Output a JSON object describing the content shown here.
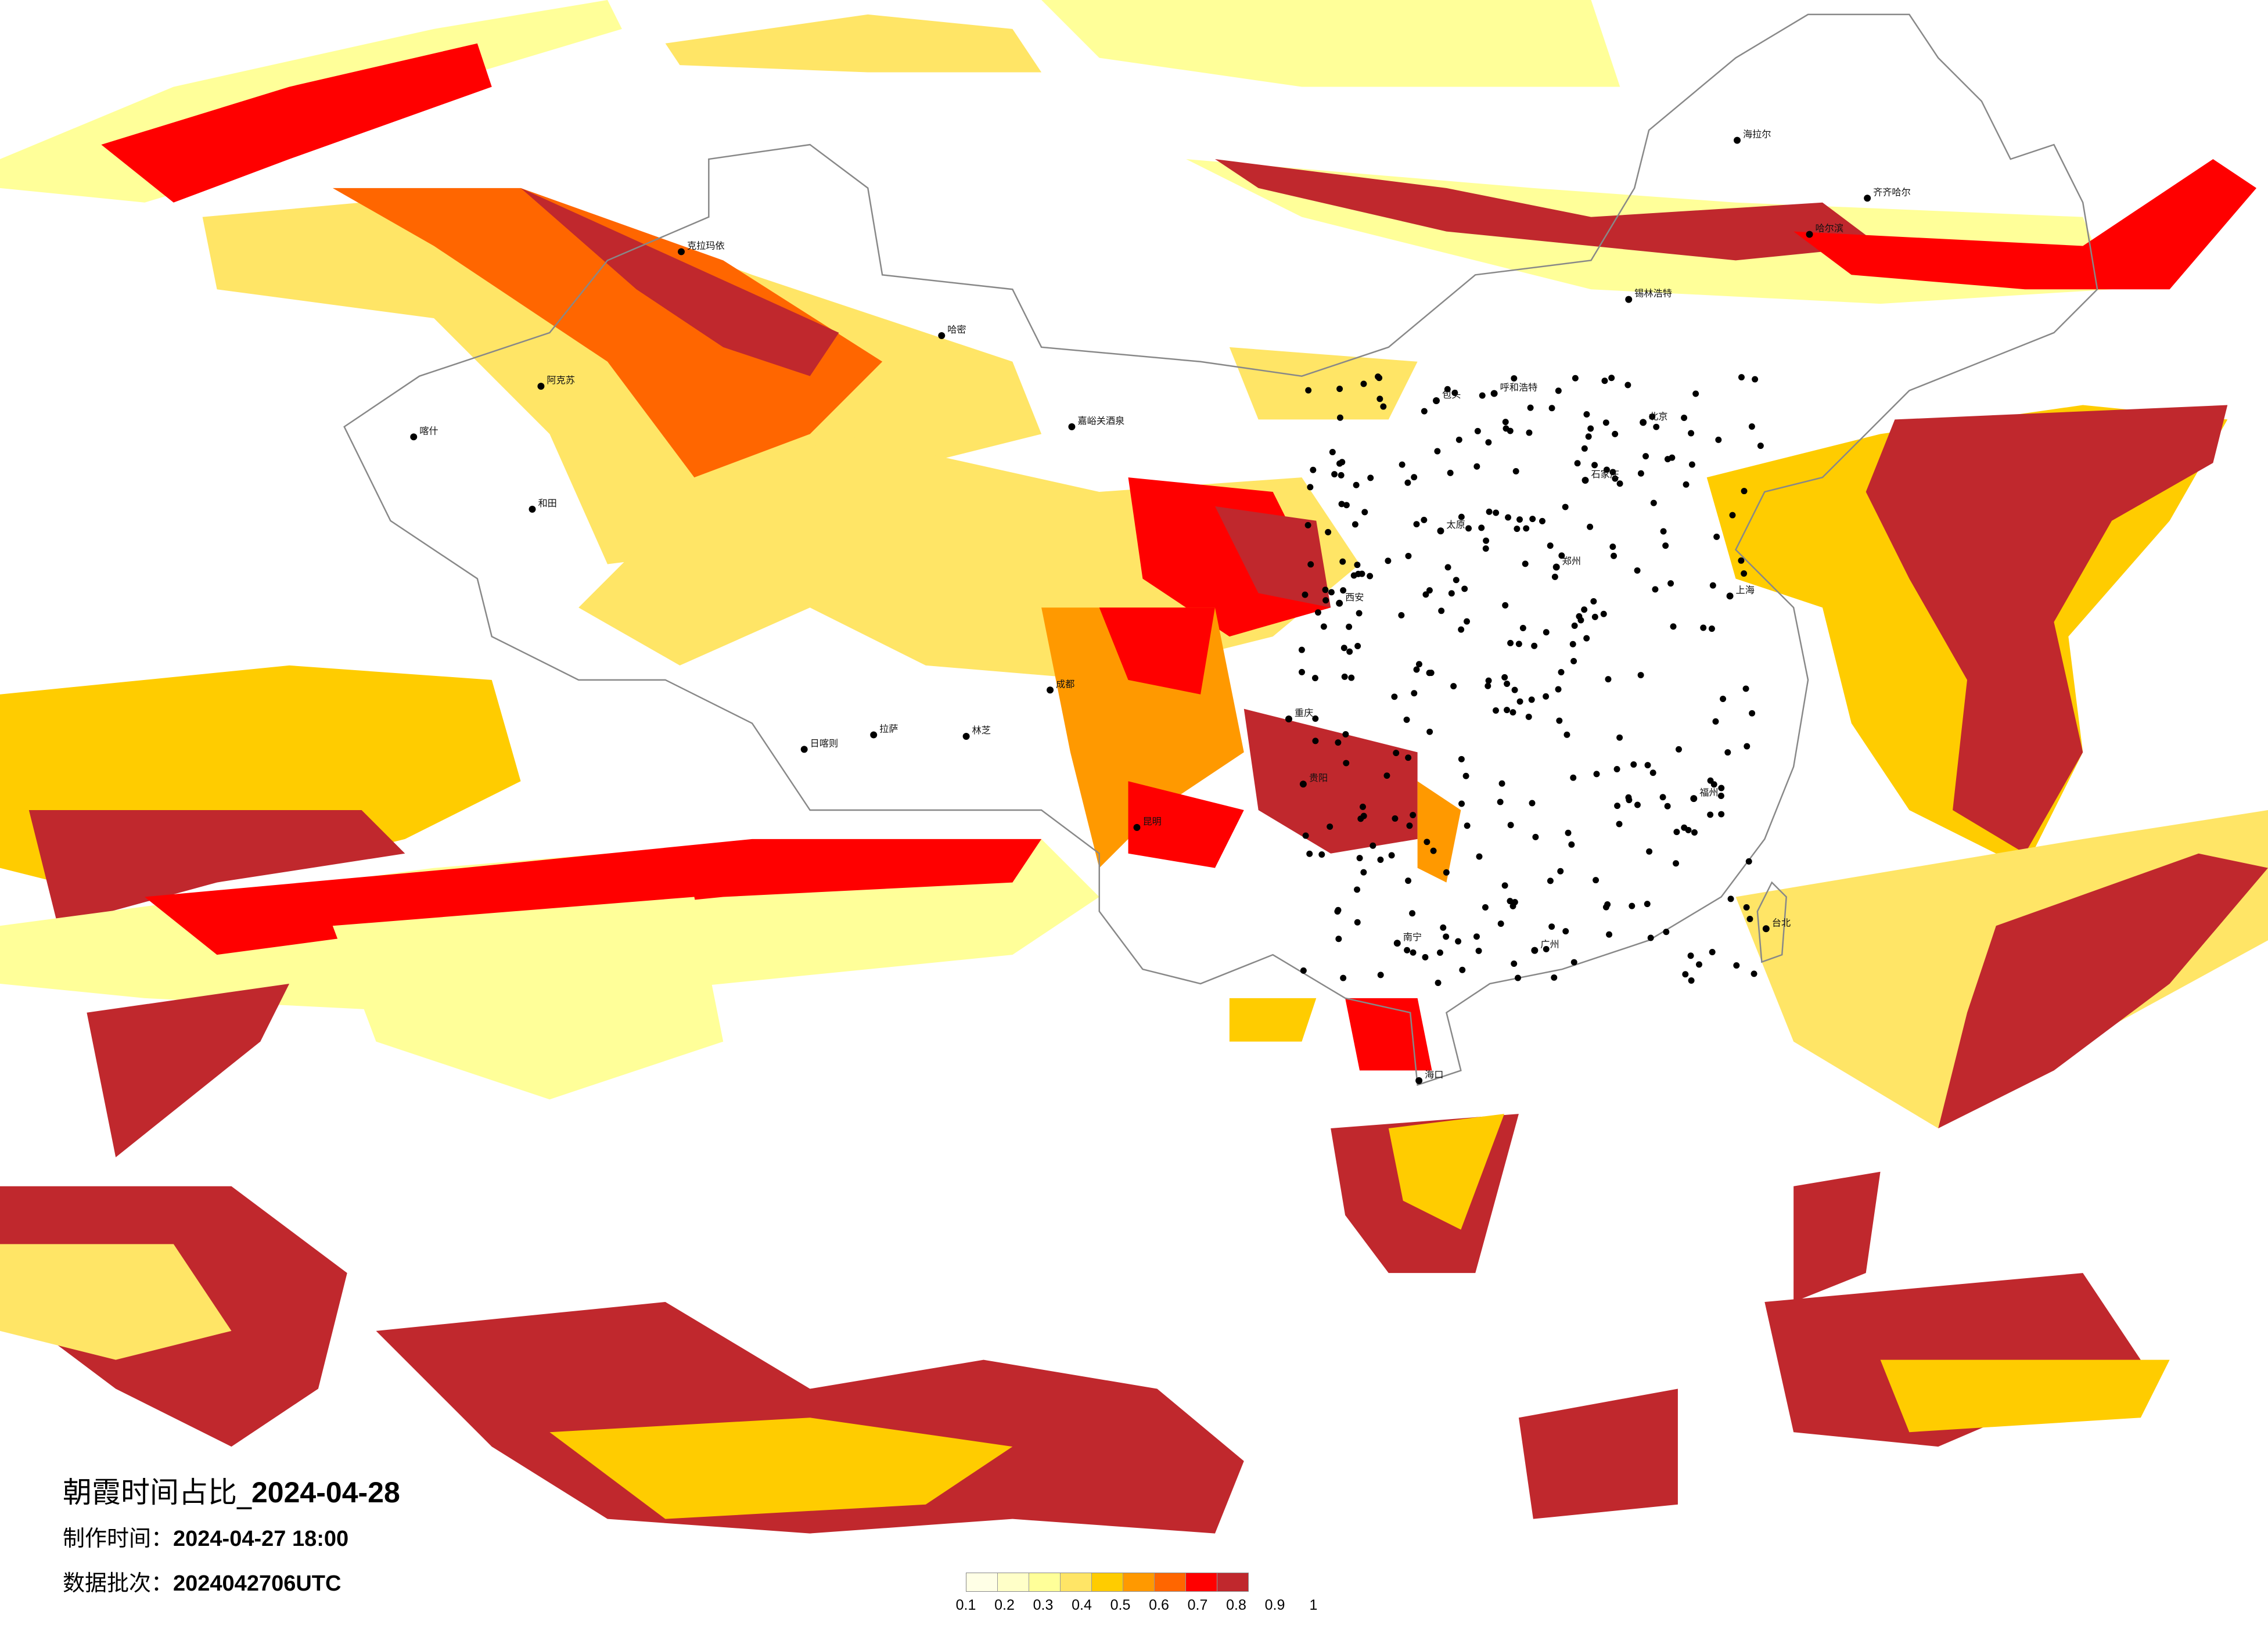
{
  "title": {
    "prefix": "朝霞时间占比_",
    "date": "2024-04-28"
  },
  "made_time": {
    "label": "制作时间：",
    "value": "2024-04-27 18:00"
  },
  "data_batch": {
    "label": "数据批次：",
    "value": "2024042706UTC"
  },
  "legend": {
    "ticks": [
      "0.1",
      "0.2",
      "0.3",
      "0.4",
      "0.5",
      "0.6",
      "0.7",
      "0.8",
      "0.9",
      "1"
    ],
    "colors": [
      "#FFFFE6",
      "#FFFFC8",
      "#FFFF99",
      "#FFE566",
      "#FFCC00",
      "#FF9900",
      "#FF6600",
      "#FF0000",
      "#C0282D"
    ]
  },
  "cities": [
    "克拉玛依",
    "阿克苏",
    "喀什",
    "和田",
    "哈密",
    "嘉峪关酒泉",
    "日喀则",
    "拉萨",
    "林芝",
    "海拉尔",
    "齐齐哈尔",
    "哈尔滨",
    "锡林浩特",
    "呼和浩特",
    "包头",
    "北京",
    "石家庄",
    "太原",
    "郑州",
    "西安",
    "成都",
    "重庆",
    "昆明",
    "贵阳",
    "南宁",
    "广州",
    "福州",
    "上海",
    "台北",
    "海口"
  ]
}
